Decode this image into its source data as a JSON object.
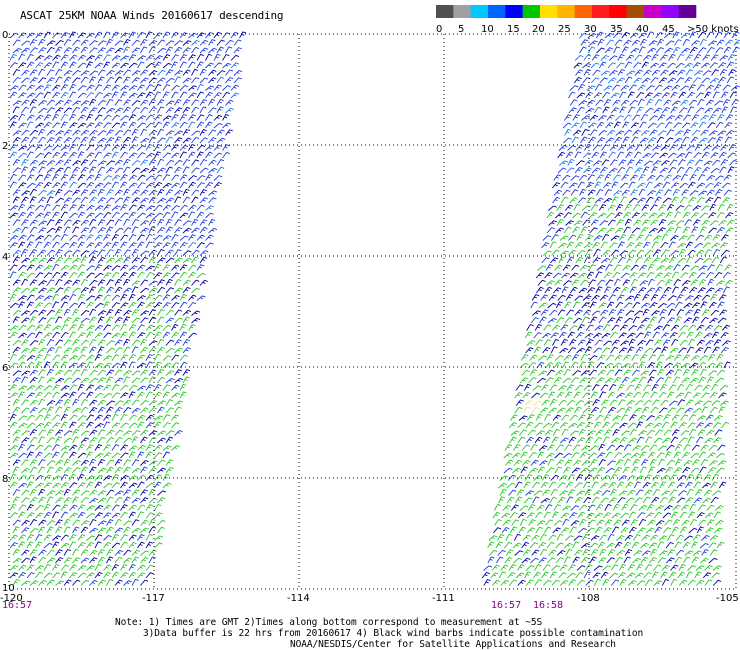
{
  "title": "ASCAT 25KM NOAA Winds 20160617 descending",
  "legend": {
    "labels": [
      "0",
      "5",
      "10",
      "15",
      "20",
      "25",
      "30",
      "35",
      "40",
      "45",
      ">50 knots"
    ],
    "colors": [
      "#505050",
      "#a0a0a0",
      "#00c8ff",
      "#0064ff",
      "#0000ff",
      "#00c800",
      "#ffe000",
      "#ffb400",
      "#ff6400",
      "#ff1e1e",
      "#ff0000",
      "#a05000",
      "#c800c8",
      "#9600ff",
      "#640096"
    ]
  },
  "map": {
    "lon_labels": [
      "-120",
      "-117",
      "-114",
      "-111",
      "-108",
      "-105"
    ],
    "lat_labels": [
      "0",
      "2",
      "4",
      "6",
      "8",
      "10"
    ],
    "barb_colors": {
      "blue": "#1e3cdc",
      "navy": "#0000a0",
      "cyan": "#1e78f0",
      "green": "#28c828",
      "yellow": "#f0e090"
    }
  },
  "times": {
    "left": "16:57",
    "mid1": "16:57",
    "mid2": "16:58"
  },
  "notes": {
    "line1": "Note: 1) Times are GMT  2)Times along bottom correspond to measurement at ~5S",
    "line2": "3)Data buffer is 22 hrs from 20160617  4) Black wind barbs indicate possible contamination",
    "credit": "NOAA/NESDIS/Center for Satellite Applications and Research"
  }
}
